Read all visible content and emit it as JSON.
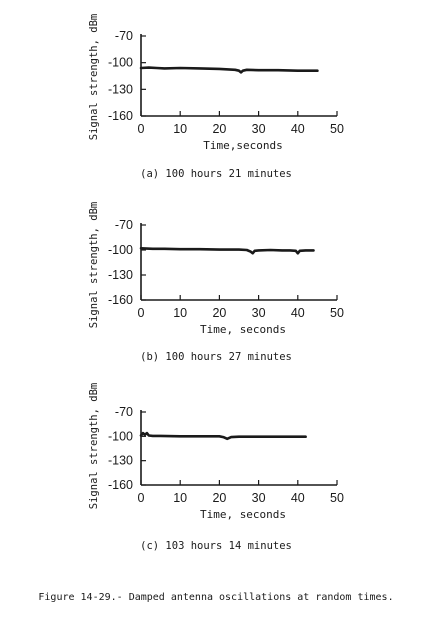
{
  "figure_caption": "Figure 14-29.- Damped antenna oscillations at random times.",
  "chart_data": [
    {
      "type": "line",
      "caption": "(a) 100 hours 21 minutes",
      "xlabel": "Time,seconds",
      "ylabel": "Signal strength, dBm",
      "xlim": [
        0,
        50
      ],
      "ylim": [
        -160,
        -70
      ],
      "xticks": [
        0,
        10,
        20,
        30,
        40,
        50
      ],
      "yticks": [
        -70,
        -100,
        -130,
        -160
      ],
      "grid": false,
      "series": [
        {
          "x": [
            0,
            2,
            4,
            6,
            10,
            15,
            20,
            24,
            25,
            25.5,
            26,
            27,
            30,
            35,
            40,
            45
          ],
          "y": [
            -106,
            -105.5,
            -106,
            -106.5,
            -106,
            -106.5,
            -107,
            -108,
            -109,
            -111,
            -109,
            -108,
            -108.5,
            -108.5,
            -109,
            -109
          ]
        }
      ],
      "color": "#1a1a1a"
    },
    {
      "type": "line",
      "caption": "(b) 100 hours 27 minutes",
      "xlabel": "Time, seconds",
      "ylabel": "Signal strength, dBm",
      "xlim": [
        0,
        50
      ],
      "ylim": [
        -160,
        -70
      ],
      "xticks": [
        0,
        10,
        20,
        30,
        40,
        50
      ],
      "yticks": [
        -70,
        -100,
        -130,
        -160
      ],
      "grid": false,
      "series": [
        {
          "x": [
            0,
            3,
            6,
            10,
            15,
            20,
            25,
            27,
            28,
            28.5,
            29,
            30,
            33,
            36,
            38,
            39.5,
            40,
            40.5,
            42,
            44
          ],
          "y": [
            -98,
            -98.5,
            -98.5,
            -99,
            -99,
            -99.5,
            -99.5,
            -100,
            -102,
            -104,
            -101,
            -100.5,
            -100,
            -100.5,
            -100.5,
            -101,
            -104,
            -101,
            -100.5,
            -100.5
          ]
        }
      ],
      "color": "#1a1a1a"
    },
    {
      "type": "line",
      "caption": "(c) 103 hours 14 minutes",
      "xlabel": "Time, seconds",
      "ylabel": "Signal strength, dBm",
      "xlim": [
        0,
        50
      ],
      "ylim": [
        -160,
        -70
      ],
      "xticks": [
        0,
        10,
        20,
        30,
        40,
        50
      ],
      "yticks": [
        -70,
        -100,
        -130,
        -160
      ],
      "grid": false,
      "series": [
        {
          "x": [
            0,
            0.5,
            1,
            1.5,
            2,
            3,
            5,
            10,
            15,
            20,
            21,
            22,
            23,
            25,
            30,
            35,
            40,
            42
          ],
          "y": [
            -99,
            -96,
            -98,
            -96,
            -99,
            -99.5,
            -99.5,
            -100,
            -100,
            -100,
            -101,
            -103,
            -101,
            -100.5,
            -100.5,
            -100.5,
            -100.5,
            -100.5
          ]
        }
      ],
      "color": "#1a1a1a"
    }
  ]
}
